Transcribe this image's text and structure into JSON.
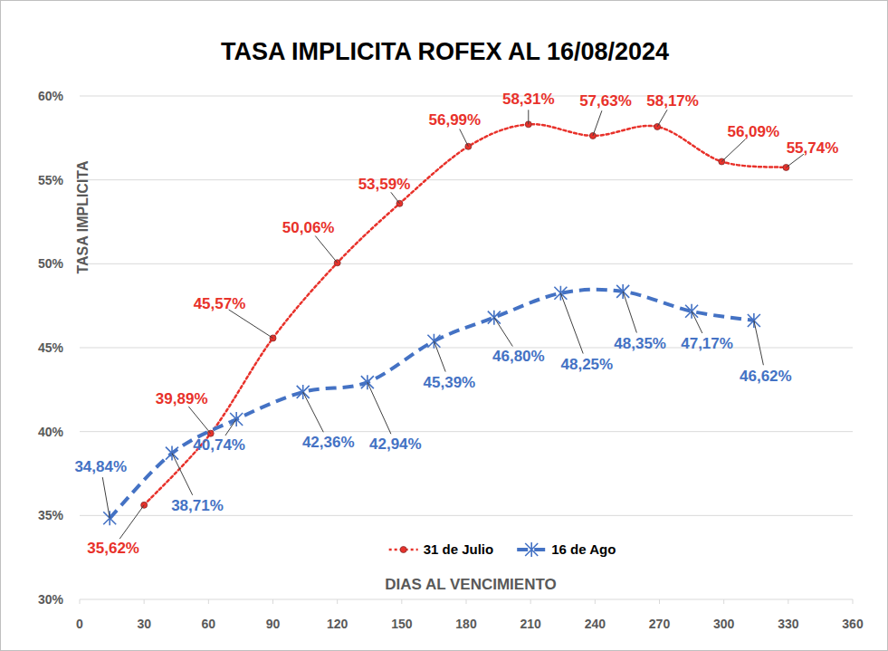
{
  "chart_data": {
    "type": "line",
    "title": "TASA IMPLICITA ROFEX AL 16/08/2024",
    "x_label": "DIAS AL VENCIMIENTO",
    "y_label": "TASA IMPLICITA",
    "xlim": [
      0,
      360
    ],
    "xticks": [
      0,
      30,
      60,
      90,
      120,
      150,
      180,
      210,
      240,
      270,
      300,
      330,
      360
    ],
    "ylim": [
      30,
      60
    ],
    "yticks": [
      {
        "value": 30,
        "label": "30%"
      },
      {
        "value": 35,
        "label": "35%"
      },
      {
        "value": 40,
        "label": "40%"
      },
      {
        "value": 45,
        "label": "45%"
      },
      {
        "value": 50,
        "label": "50%"
      },
      {
        "value": 55,
        "label": "55%"
      },
      {
        "value": 60,
        "label": "60%"
      }
    ],
    "grid": true,
    "legend": "bottom",
    "data_labels": true,
    "series": [
      {
        "name": "31 de Julio",
        "color": "#e8312a",
        "marker": "circle",
        "line_style": "dotted",
        "x": [
          30,
          61,
          90,
          120,
          149,
          181,
          209,
          239,
          269,
          299,
          329
        ],
        "values": [
          35.62,
          39.89,
          45.57,
          50.06,
          53.59,
          56.99,
          58.31,
          57.63,
          58.17,
          56.09,
          55.74
        ],
        "value_labels": [
          "35,62%",
          "39,89%",
          "45,57%",
          "50,06%",
          "53,59%",
          "56,99%",
          "58,31%",
          "57,63%",
          "58,17%",
          "56,09%",
          "55,74%"
        ]
      },
      {
        "name": "16 de Ago",
        "color": "#4472c4",
        "marker": "star",
        "line_style": "dashed",
        "x": [
          14,
          43,
          73,
          104,
          134,
          165,
          193,
          224,
          253,
          285,
          314
        ],
        "values": [
          34.84,
          38.71,
          40.74,
          42.36,
          42.94,
          45.39,
          46.8,
          48.25,
          48.35,
          47.17,
          46.62
        ],
        "value_labels": [
          "34,84%",
          "38,71%",
          "40,74%",
          "42,36%",
          "42,94%",
          "45,39%",
          "46,80%",
          "48,25%",
          "48,35%",
          "47,17%",
          "46,62%"
        ]
      }
    ]
  }
}
